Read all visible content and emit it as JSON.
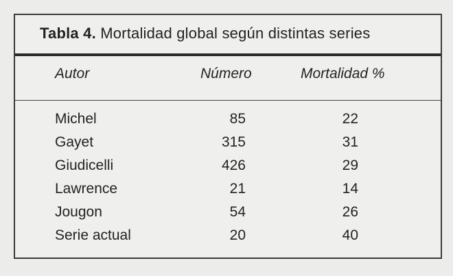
{
  "table": {
    "caption_label": "Tabla 4.",
    "caption_text": "Mortalidad global según distintas series",
    "headers": {
      "author": "Autor",
      "number": "Número",
      "mortality": "Mortalidad %"
    },
    "rows": [
      {
        "author": "Michel",
        "number": "85",
        "mortality": "22"
      },
      {
        "author": "Gayet",
        "number": "315",
        "mortality": "31"
      },
      {
        "author": "Giudicelli",
        "number": "426",
        "mortality": "29"
      },
      {
        "author": "Lawrence",
        "number": "21",
        "mortality": "14"
      },
      {
        "author": "Jougon",
        "number": "54",
        "mortality": "26"
      },
      {
        "author": "Serie actual",
        "number": "20",
        "mortality": "40"
      }
    ]
  }
}
